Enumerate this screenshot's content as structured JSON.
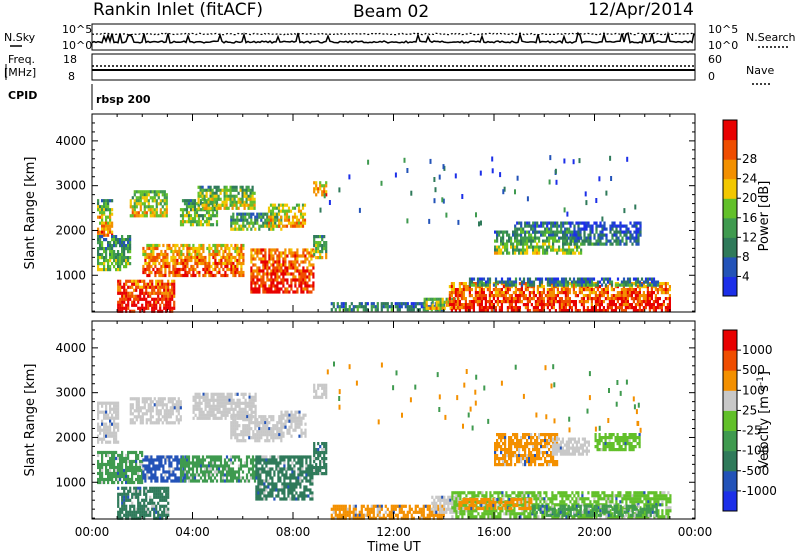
{
  "header": {
    "station": "Rankin Inlet (fitACF)",
    "beam": "Beam 02",
    "date": "12/Apr/2014"
  },
  "strips": {
    "nsky_label": "N.Sky",
    "nsky_ticks": [
      "10^5",
      "10^0"
    ],
    "nsearch_label": "N.Search",
    "nsearch_ticks": [
      "10^5",
      "10^0"
    ],
    "freq_label_1": "Freq.",
    "freq_label_2": "[MHz]",
    "freq_ticks": [
      "18",
      "8"
    ],
    "nave_label": "Nave",
    "nave_ticks": [
      "60",
      "0"
    ],
    "cpid_label": "CPID",
    "cpid_value": "rbsp 200"
  },
  "chart_data": [
    {
      "type": "heatmap",
      "title": "",
      "xlabel": "Time UT",
      "ylabel": "Slant Range [km]",
      "xlim": [
        0,
        24
      ],
      "ylim": [
        180,
        4600
      ],
      "x_tick_labels": [
        "00:00",
        "04:00",
        "08:00",
        "12:00",
        "16:00",
        "20:00",
        "00:00"
      ],
      "y_tick_labels": [
        "1000",
        "2000",
        "3000",
        "4000"
      ],
      "y_ticks": [
        1000,
        2000,
        3000,
        4000
      ],
      "colorbar": {
        "label": "Power [dB]",
        "ticks": [
          "4",
          "8",
          "12",
          "16",
          "20",
          "24",
          "28"
        ],
        "range": [
          0,
          32
        ],
        "colors": [
          "#1c2fe8",
          "#2353b8",
          "#2f7a5a",
          "#3f9a4f",
          "#62c02a",
          "#f3c800",
          "#f39000",
          "#ef4d00",
          "#e80000"
        ]
      },
      "regions": [
        {
          "t0": 0.2,
          "t1": 0.8,
          "r0": 1900,
          "r1": 2400,
          "level": 0.7
        },
        {
          "t0": 0.2,
          "t1": 0.8,
          "r0": 2400,
          "r1": 2700,
          "level": 0.45
        },
        {
          "t0": 0.2,
          "t1": 1.5,
          "r0": 1100,
          "r1": 1900,
          "level": 0.4
        },
        {
          "t0": 1.0,
          "t1": 3.3,
          "r0": 200,
          "r1": 900,
          "level": 0.9
        },
        {
          "t0": 1.5,
          "t1": 3.0,
          "r0": 2300,
          "r1": 2900,
          "level": 0.55
        },
        {
          "t0": 2.0,
          "t1": 6.0,
          "r0": 1000,
          "r1": 1700,
          "level": 0.75
        },
        {
          "t0": 3.5,
          "t1": 5.0,
          "r0": 2100,
          "r1": 2700,
          "level": 0.45
        },
        {
          "t0": 4.2,
          "t1": 6.5,
          "r0": 2500,
          "r1": 3000,
          "level": 0.5
        },
        {
          "t0": 5.5,
          "t1": 7.5,
          "r0": 2000,
          "r1": 2400,
          "level": 0.4
        },
        {
          "t0": 6.3,
          "t1": 8.8,
          "r0": 600,
          "r1": 1600,
          "level": 0.85
        },
        {
          "t0": 7.0,
          "t1": 8.5,
          "r0": 2100,
          "r1": 2600,
          "level": 0.6
        },
        {
          "t0": 8.8,
          "t1": 9.3,
          "r0": 1400,
          "r1": 1900,
          "level": 0.45
        },
        {
          "t0": 8.8,
          "t1": 9.3,
          "r0": 2800,
          "r1": 3100,
          "level": 0.7
        },
        {
          "t0": 9.5,
          "t1": 14.0,
          "r0": 200,
          "r1": 400,
          "level": 0.3
        },
        {
          "t0": 13.2,
          "t1": 14.6,
          "r0": 250,
          "r1": 500,
          "level": 0.6
        },
        {
          "t0": 14.2,
          "t1": 23.0,
          "r0": 200,
          "r1": 850,
          "level": 0.85
        },
        {
          "t0": 15.0,
          "t1": 22.5,
          "r0": 750,
          "r1": 950,
          "level": 0.3
        },
        {
          "t0": 16.0,
          "t1": 19.5,
          "r0": 1500,
          "r1": 2000,
          "level": 0.4
        },
        {
          "t0": 19.0,
          "t1": 21.8,
          "r0": 1700,
          "r1": 2200,
          "level": 0.2
        },
        {
          "t0": 16.8,
          "t1": 19.0,
          "r0": 1950,
          "r1": 2200,
          "level": 0.3
        }
      ]
    },
    {
      "type": "heatmap",
      "title": "",
      "xlabel": "Time UT",
      "ylabel": "Slant Range [km]",
      "xlim": [
        0,
        24
      ],
      "ylim": [
        180,
        4600
      ],
      "x_tick_labels": [
        "00:00",
        "04:00",
        "08:00",
        "12:00",
        "16:00",
        "20:00",
        "00:00"
      ],
      "y_tick_labels": [
        "1000",
        "2000",
        "3000",
        "4000"
      ],
      "y_ticks": [
        1000,
        2000,
        3000,
        4000
      ],
      "colorbar": {
        "label": "Velocity [m s^-1]",
        "ticks": [
          "1000",
          "500",
          "100",
          "25",
          "-25",
          "-100",
          "-500",
          "-1000"
        ],
        "colors": [
          "#1c2fe8",
          "#2353b8",
          "#2f7a5a",
          "#3f9a4f",
          "#62c02a",
          "#c8c8c8",
          "#f39000",
          "#ef4d00",
          "#e80000"
        ]
      },
      "regions": [
        {
          "t0": 0.2,
          "t1": 1.0,
          "r0": 1900,
          "r1": 2800,
          "color": "#c8c8c8"
        },
        {
          "t0": 0.2,
          "t1": 2.0,
          "r0": 1000,
          "r1": 1700,
          "color": "#3f9a4f"
        },
        {
          "t0": 1.0,
          "t1": 3.0,
          "r0": 200,
          "r1": 900,
          "color": "#2f7a5a"
        },
        {
          "t0": 1.5,
          "t1": 3.5,
          "r0": 2300,
          "r1": 2900,
          "color": "#c8c8c8"
        },
        {
          "t0": 2.0,
          "t1": 3.8,
          "r0": 1000,
          "r1": 1600,
          "color": "#2353b8"
        },
        {
          "t0": 3.5,
          "t1": 6.5,
          "r0": 1000,
          "r1": 1600,
          "color": "#3f9a4f"
        },
        {
          "t0": 4.0,
          "t1": 6.5,
          "r0": 2400,
          "r1": 3000,
          "color": "#c8c8c8"
        },
        {
          "t0": 5.5,
          "t1": 7.5,
          "r0": 1900,
          "r1": 2500,
          "color": "#c8c8c8"
        },
        {
          "t0": 6.5,
          "t1": 8.8,
          "r0": 600,
          "r1": 1600,
          "color": "#2f7a5a"
        },
        {
          "t0": 7.5,
          "t1": 8.5,
          "r0": 2000,
          "r1": 2600,
          "color": "#c8c8c8"
        },
        {
          "t0": 8.8,
          "t1": 9.3,
          "r0": 1200,
          "r1": 1900,
          "color": "#2f7a5a"
        },
        {
          "t0": 8.8,
          "t1": 9.3,
          "r0": 2900,
          "r1": 3200,
          "color": "#c8c8c8"
        },
        {
          "t0": 9.5,
          "t1": 14.0,
          "r0": 200,
          "r1": 500,
          "color": "#f39000"
        },
        {
          "t0": 13.5,
          "t1": 14.6,
          "r0": 300,
          "r1": 700,
          "color": "#c8c8c8"
        },
        {
          "t0": 14.3,
          "t1": 23.0,
          "r0": 200,
          "r1": 800,
          "color": "#62c02a"
        },
        {
          "t0": 14.5,
          "t1": 17.5,
          "r0": 400,
          "r1": 650,
          "color": "#f39000"
        },
        {
          "t0": 17.5,
          "t1": 22.5,
          "r0": 250,
          "r1": 500,
          "color": "#3f9a4f"
        },
        {
          "t0": 16.0,
          "t1": 18.5,
          "r0": 1400,
          "r1": 2100,
          "color": "#f39000"
        },
        {
          "t0": 18.3,
          "t1": 19.8,
          "r0": 1600,
          "r1": 2000,
          "color": "#c8c8c8"
        },
        {
          "t0": 20.0,
          "t1": 21.8,
          "r0": 1700,
          "r1": 2100,
          "color": "#62c02a"
        }
      ]
    }
  ]
}
